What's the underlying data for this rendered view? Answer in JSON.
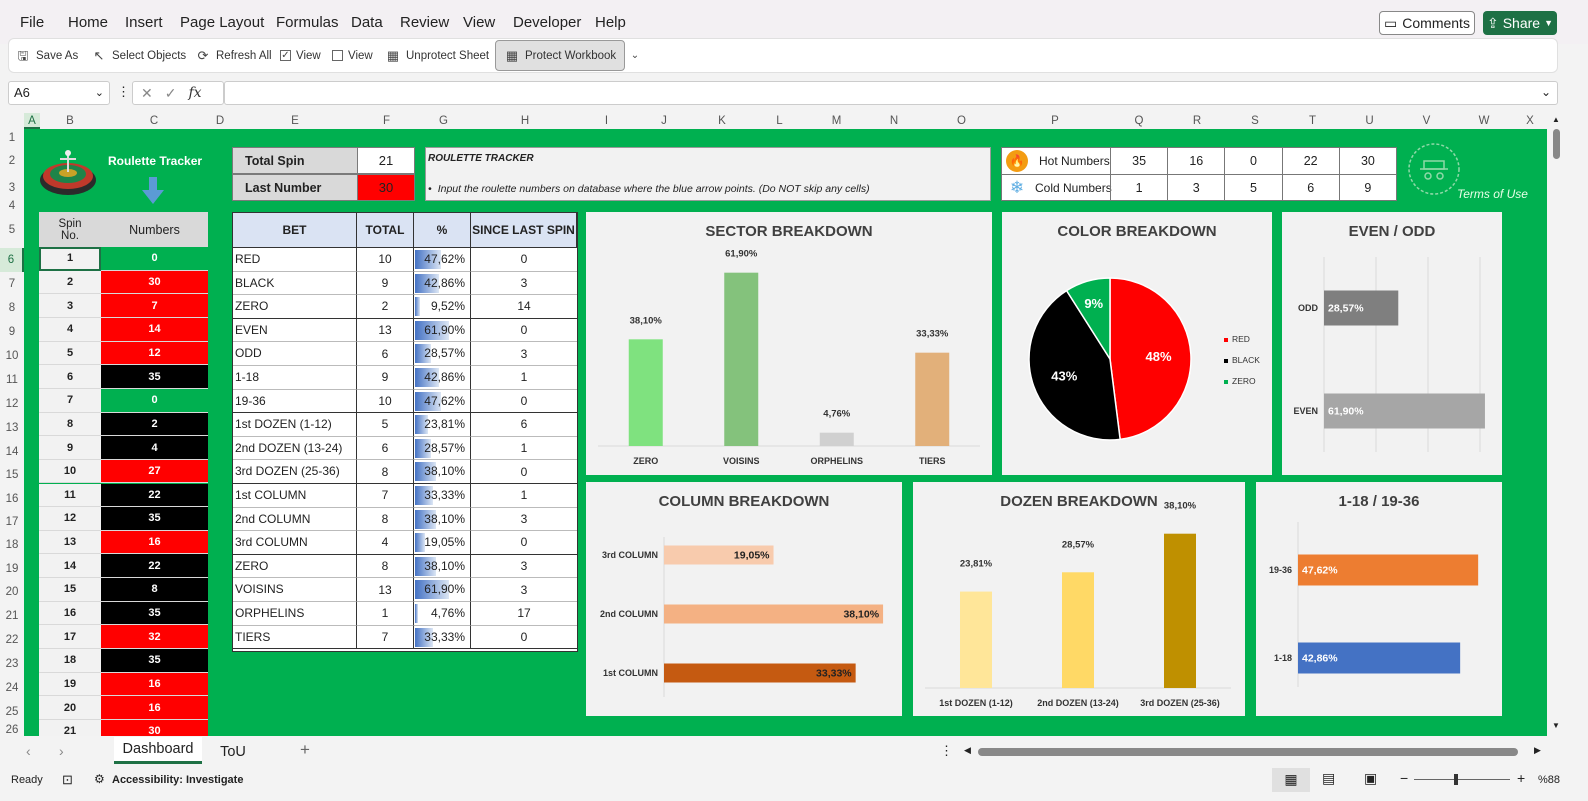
{
  "menu": [
    "File",
    "Home",
    "Insert",
    "Page Layout",
    "Formulas",
    "Data",
    "Review",
    "View",
    "Developer",
    "Help"
  ],
  "comments_label": "Comments",
  "share_label": "Share",
  "ribbon": {
    "save_as": "Save As",
    "select_objects": "Select Objects",
    "refresh_all": "Refresh All",
    "view1": "View",
    "view2": "View",
    "unprotect": "Unprotect Sheet",
    "protect": "Protect Workbook"
  },
  "namebox": "A6",
  "fx": "fx",
  "columns": [
    "A",
    "B",
    "C",
    "D",
    "E",
    "F",
    "G",
    "H",
    "I",
    "J",
    "K",
    "L",
    "M",
    "N",
    "O",
    "P",
    "Q",
    "R",
    "S",
    "T",
    "U",
    "V",
    "W",
    "X"
  ],
  "rows": [
    "1",
    "2",
    "3",
    "4",
    "5",
    "6",
    "7",
    "8",
    "9",
    "10",
    "11",
    "12",
    "13",
    "14",
    "15",
    "16",
    "17",
    "18",
    "19",
    "20",
    "21",
    "22",
    "23",
    "24",
    "25",
    "26"
  ],
  "tracker": {
    "title": "Roulette Tracker",
    "spin_header": "Spin No.",
    "numbers_header": "Numbers",
    "spins": [
      {
        "no": "1",
        "num": "0",
        "color": "#00b050"
      },
      {
        "no": "2",
        "num": "30",
        "color": "#ff0000"
      },
      {
        "no": "3",
        "num": "7",
        "color": "#ff0000"
      },
      {
        "no": "4",
        "num": "14",
        "color": "#ff0000"
      },
      {
        "no": "5",
        "num": "12",
        "color": "#ff0000"
      },
      {
        "no": "6",
        "num": "35",
        "color": "#000000"
      },
      {
        "no": "7",
        "num": "0",
        "color": "#00b050"
      },
      {
        "no": "8",
        "num": "2",
        "color": "#000000"
      },
      {
        "no": "9",
        "num": "4",
        "color": "#000000"
      },
      {
        "no": "10",
        "num": "27",
        "color": "#ff0000"
      },
      {
        "no": "11",
        "num": "22",
        "color": "#000000"
      },
      {
        "no": "12",
        "num": "35",
        "color": "#000000"
      },
      {
        "no": "13",
        "num": "16",
        "color": "#ff0000"
      },
      {
        "no": "14",
        "num": "22",
        "color": "#000000"
      },
      {
        "no": "15",
        "num": "8",
        "color": "#000000"
      },
      {
        "no": "16",
        "num": "35",
        "color": "#000000"
      },
      {
        "no": "17",
        "num": "32",
        "color": "#ff0000"
      },
      {
        "no": "18",
        "num": "35",
        "color": "#000000"
      },
      {
        "no": "19",
        "num": "16",
        "color": "#ff0000"
      },
      {
        "no": "20",
        "num": "16",
        "color": "#ff0000"
      },
      {
        "no": "21",
        "num": "30",
        "color": "#ff0000"
      }
    ]
  },
  "summary": {
    "total_spin_label": "Total Spin",
    "total_spin": "21",
    "last_number_label": "Last Number",
    "last_number": "30"
  },
  "info": {
    "title": "ROULETTE TRACKER",
    "text": "Input the roulette numbers on database where the blue arrow points. (Do NOT skip any cells)"
  },
  "hot": {
    "label": "Hot Numbers",
    "values": [
      "35",
      "16",
      "0",
      "22",
      "30"
    ]
  },
  "cold": {
    "label": "Cold Numbers",
    "values": [
      "1",
      "3",
      "5",
      "6",
      "9"
    ]
  },
  "terms": "Terms of Use",
  "bets": {
    "headers": [
      "BET",
      "TOTAL",
      "%",
      "SINCE LAST SPIN"
    ],
    "rows": [
      {
        "bet": "RED",
        "total": "10",
        "pct": "47,62%",
        "pv": 47.62,
        "since": "0"
      },
      {
        "bet": "BLACK",
        "total": "9",
        "pct": "42,86%",
        "pv": 42.86,
        "since": "3"
      },
      {
        "bet": "ZERO",
        "total": "2",
        "pct": "9,52%",
        "pv": 9.52,
        "since": "14"
      },
      {
        "bet": "EVEN",
        "total": "13",
        "pct": "61,90%",
        "pv": 61.9,
        "since": "0"
      },
      {
        "bet": "ODD",
        "total": "6",
        "pct": "28,57%",
        "pv": 28.57,
        "since": "3"
      },
      {
        "bet": "1-18",
        "total": "9",
        "pct": "42,86%",
        "pv": 42.86,
        "since": "1"
      },
      {
        "bet": "19-36",
        "total": "10",
        "pct": "47,62%",
        "pv": 47.62,
        "since": "0"
      },
      {
        "bet": "1st DOZEN (1-12)",
        "total": "5",
        "pct": "23,81%",
        "pv": 23.81,
        "since": "6"
      },
      {
        "bet": "2nd DOZEN (13-24)",
        "total": "6",
        "pct": "28,57%",
        "pv": 28.57,
        "since": "1"
      },
      {
        "bet": "3rd DOZEN (25-36)",
        "total": "8",
        "pct": "38,10%",
        "pv": 38.1,
        "since": "0"
      },
      {
        "bet": "1st COLUMN",
        "total": "7",
        "pct": "33,33%",
        "pv": 33.33,
        "since": "1"
      },
      {
        "bet": "2nd COLUMN",
        "total": "8",
        "pct": "38,10%",
        "pv": 38.1,
        "since": "3"
      },
      {
        "bet": "3rd COLUMN",
        "total": "4",
        "pct": "19,05%",
        "pv": 19.05,
        "since": "0"
      },
      {
        "bet": "ZERO",
        "total": "8",
        "pct": "38,10%",
        "pv": 38.1,
        "since": "3"
      },
      {
        "bet": "VOISINS",
        "total": "13",
        "pct": "61,90%",
        "pv": 61.9,
        "since": "3"
      },
      {
        "bet": "ORPHELINS",
        "total": "1",
        "pct": "4,76%",
        "pv": 4.76,
        "since": "17"
      },
      {
        "bet": "TIERS",
        "total": "7",
        "pct": "33,33%",
        "pv": 33.33,
        "since": "0"
      }
    ]
  },
  "chart_data": [
    {
      "type": "bar",
      "title": "SECTOR BREAKDOWN",
      "categories": [
        "ZERO",
        "VOISINS",
        "ORPHELINS",
        "TIERS"
      ],
      "values": [
        38.1,
        61.9,
        4.76,
        33.33
      ],
      "labels": [
        "38,10%",
        "61,90%",
        "4,76%",
        "33,33%"
      ],
      "colors": [
        "#7fe27f",
        "#84c27c",
        "#d0d0d0",
        "#e2b07a"
      ],
      "ylim": [
        0,
        70
      ]
    },
    {
      "type": "pie",
      "title": "COLOR BREAKDOWN",
      "categories": [
        "RED",
        "BLACK",
        "ZERO"
      ],
      "values": [
        48,
        43,
        9
      ],
      "labels": [
        "48%",
        "43%",
        "9%"
      ],
      "colors": [
        "#ff0000",
        "#000000",
        "#00b050"
      ]
    },
    {
      "type": "bar",
      "orientation": "horizontal",
      "title": "EVEN / ODD",
      "categories": [
        "ODD",
        "EVEN"
      ],
      "values": [
        28.57,
        61.9
      ],
      "labels": [
        "28,57%",
        "61,90%"
      ],
      "colors": [
        "#7f7f7f",
        "#a6a6a6"
      ],
      "xlim": [
        0,
        80
      ]
    },
    {
      "type": "bar",
      "orientation": "horizontal",
      "title": "COLUMN BREAKDOWN",
      "categories": [
        "3rd COLUMN",
        "2nd COLUMN",
        "1st COLUMN"
      ],
      "values": [
        19.05,
        38.1,
        33.33
      ],
      "labels": [
        "19,05%",
        "38,10%",
        "33,33%"
      ],
      "colors": [
        "#f8cbad",
        "#f4b183",
        "#c55a11"
      ],
      "xlim": [
        0,
        40
      ]
    },
    {
      "type": "bar",
      "title": "DOZEN BREAKDOWN",
      "categories": [
        "1st DOZEN (1-12)",
        "2nd DOZEN (13-24)",
        "3rd DOZEN (25-36)"
      ],
      "values": [
        23.81,
        28.57,
        38.1
      ],
      "labels": [
        "23,81%",
        "28,57%",
        "38,10%"
      ],
      "colors": [
        "#ffe699",
        "#ffd966",
        "#bf9000"
      ],
      "ylim": [
        0,
        40
      ]
    },
    {
      "type": "bar",
      "orientation": "horizontal",
      "title": "1-18 / 19-36",
      "categories": [
        "19-36",
        "1-18"
      ],
      "values": [
        47.62,
        42.86
      ],
      "labels": [
        "47,62%",
        "42,86%"
      ],
      "colors": [
        "#ed7d31",
        "#4472c4"
      ],
      "xlim": [
        0,
        60
      ]
    }
  ],
  "tabs": [
    "Dashboard",
    "ToU"
  ],
  "status": {
    "ready": "Ready",
    "accessibility": "Accessibility: Investigate",
    "zoom": "%88"
  }
}
